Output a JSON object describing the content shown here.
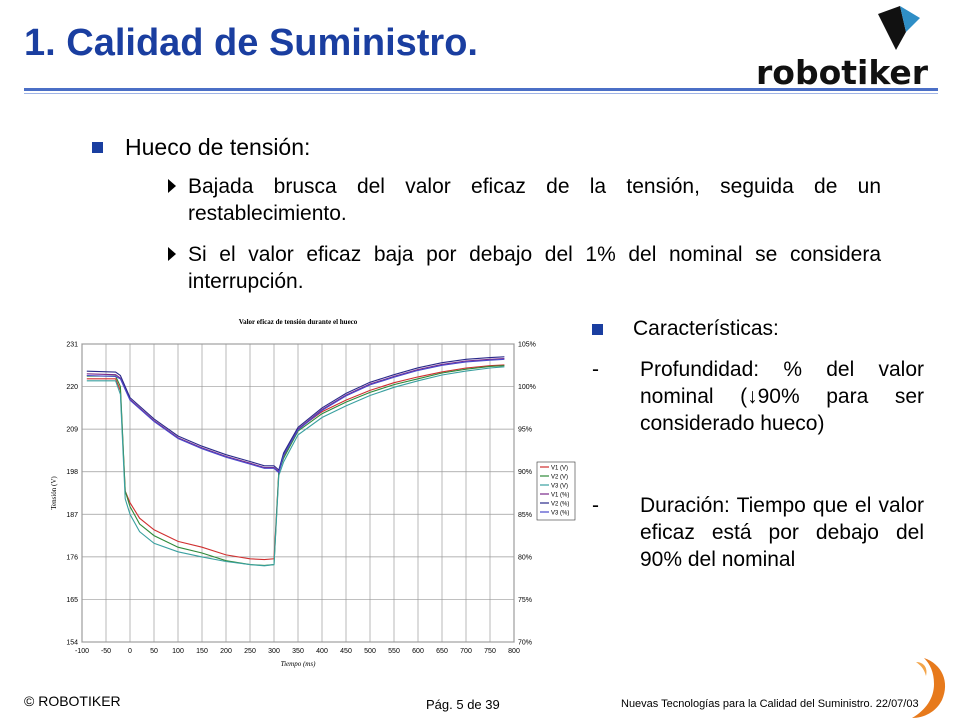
{
  "slide": {
    "title": "1. Calidad de Suministro.",
    "logo_text": "robotiker",
    "heading": "Hueco de tensión:",
    "sub_bullets": [
      "Bajada brusca del valor eficaz de la tensión, seguida de un restablecimiento.",
      "Si el valor eficaz baja por debajo del 1% del nominal se considera interrupción."
    ],
    "right": {
      "heading": "Características:",
      "items": [
        {
          "dash": "-",
          "text": "Profundidad: % del valor nominal (↓90% para ser considerado hueco)"
        },
        {
          "dash": "-",
          "text": "Duración: Tiempo que el valor eficaz está por debajo del 90% del nominal"
        }
      ]
    },
    "footer": {
      "left": "© ROBOTIKER",
      "center": "Pág. 5 de 39",
      "right": "Nuevas Tecnologías para la Calidad del Suministro. 22/07/03"
    },
    "colors": {
      "title": "#1a3ea0",
      "bullet": "#1a3ea0",
      "rule": "#4b6fc6"
    }
  },
  "chart_data": {
    "type": "line",
    "title": "Valor eficaz de tensión durante el hueco",
    "xlabel": "Tiempo (ms)",
    "ylabel": "Tensión (V)",
    "xlim": [
      -100,
      800
    ],
    "ylim": [
      154,
      231
    ],
    "y2lim": [
      70,
      105
    ],
    "x_ticks": [
      "-100",
      "-50",
      "0",
      "50",
      "100",
      "150",
      "200",
      "250",
      "300",
      "350",
      "400",
      "450",
      "500",
      "550",
      "600",
      "650",
      "700",
      "750",
      "800"
    ],
    "y_ticks": [
      "154",
      "165",
      "176",
      "187",
      "198",
      "209",
      "220",
      "231"
    ],
    "y2_ticks": [
      "70%",
      "75%",
      "80%",
      "85%",
      "90%",
      "95%",
      "100%",
      "105%"
    ],
    "grid": true,
    "legend_position": "right",
    "series": [
      {
        "name": "V1 (V)",
        "axis": "left",
        "color": "#d03030",
        "x": [
          -90,
          -30,
          -20,
          -10,
          0,
          20,
          50,
          100,
          150,
          200,
          250,
          280,
          300,
          310,
          320,
          350,
          400,
          450,
          500,
          550,
          600,
          650,
          700,
          750,
          780
        ],
        "y": [
          222,
          222,
          219,
          193,
          190,
          186,
          183,
          180,
          178.5,
          176.5,
          175.5,
          175.3,
          175.5,
          198,
          202,
          209,
          213.5,
          216.5,
          219,
          221,
          222.5,
          223.8,
          224.8,
          225.4,
          225.6
        ]
      },
      {
        "name": "V2 (V)",
        "axis": "left",
        "color": "#2f8a3a",
        "x": [
          -90,
          -30,
          -20,
          -10,
          0,
          20,
          50,
          100,
          150,
          200,
          250,
          280,
          300,
          310,
          320,
          350,
          400,
          450,
          500,
          550,
          600,
          650,
          700,
          750,
          780
        ],
        "y": [
          222.7,
          222.7,
          220,
          193,
          189,
          184.5,
          181.5,
          178.5,
          177,
          175,
          174,
          173.8,
          174,
          198,
          201.5,
          208.5,
          213,
          216,
          218.5,
          220.5,
          222,
          223.5,
          224.5,
          225.2,
          225.4
        ]
      },
      {
        "name": "V3 (V)",
        "axis": "left",
        "color": "#3aa0a0",
        "x": [
          -90,
          -30,
          -20,
          -10,
          0,
          20,
          50,
          100,
          150,
          200,
          250,
          280,
          300,
          310,
          320,
          350,
          400,
          450,
          500,
          550,
          600,
          650,
          700,
          750,
          780
        ],
        "y": [
          221.5,
          221.5,
          218,
          191,
          187,
          182.5,
          179.5,
          177.3,
          176,
          174.8,
          174,
          173.7,
          174,
          197,
          200.5,
          207.5,
          212,
          215,
          217.7,
          219.8,
          221.5,
          223,
          224,
          224.8,
          225.1
        ]
      },
      {
        "name": "V1 (%)",
        "axis": "right",
        "color": "#7a2a8a",
        "x": [
          -90,
          -30,
          -20,
          0,
          50,
          100,
          150,
          200,
          250,
          280,
          300,
          310,
          320,
          350,
          400,
          450,
          500,
          550,
          600,
          650,
          700,
          750,
          780
        ],
        "y": [
          101.5,
          101.4,
          101,
          98.5,
          96,
          94,
          92.8,
          91.8,
          91,
          90.5,
          90.5,
          90,
          92,
          95,
          97.3,
          99,
          100.3,
          101.2,
          102,
          102.6,
          103,
          103.2,
          103.3
        ]
      },
      {
        "name": "V2 (%)",
        "axis": "right",
        "color": "#2a2a8a",
        "x": [
          -90,
          -30,
          -20,
          0,
          50,
          100,
          150,
          200,
          250,
          280,
          300,
          310,
          320,
          350,
          400,
          450,
          500,
          550,
          600,
          650,
          700,
          750,
          780
        ],
        "y": [
          101.8,
          101.7,
          101.3,
          98.7,
          96.2,
          94.2,
          93,
          92,
          91.2,
          90.7,
          90.7,
          90.2,
          92.2,
          95.2,
          97.5,
          99.2,
          100.5,
          101.4,
          102.2,
          102.8,
          103.2,
          103.4,
          103.5
        ]
      },
      {
        "name": "V3 (%)",
        "axis": "right",
        "color": "#4a4acc",
        "x": [
          -90,
          -30,
          -20,
          0,
          50,
          100,
          150,
          200,
          250,
          280,
          300,
          310,
          320,
          350,
          400,
          450,
          500,
          550,
          600,
          650,
          700,
          750,
          780
        ],
        "y": [
          101.3,
          101.2,
          100.9,
          98.4,
          95.9,
          93.9,
          92.7,
          91.7,
          90.9,
          90.4,
          90.4,
          89.9,
          91.9,
          94.9,
          97.2,
          98.9,
          100.2,
          101.1,
          101.9,
          102.5,
          102.9,
          103.1,
          103.2
        ]
      }
    ]
  }
}
